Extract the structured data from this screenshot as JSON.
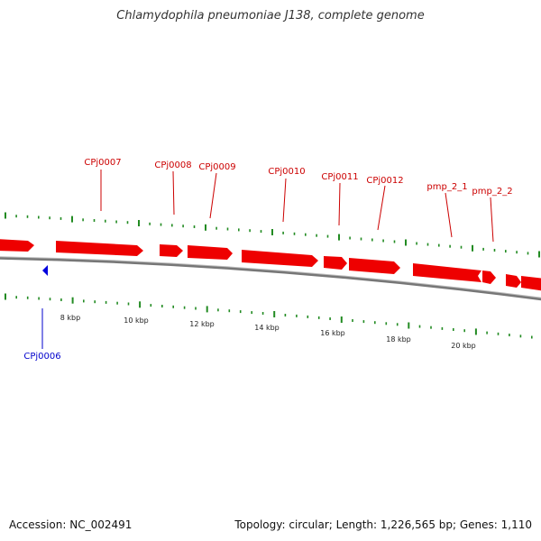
{
  "title": "Chlamydophila pneumoniae J138, complete genome",
  "footer": {
    "accession": "Accession: NC_002491",
    "summary": "Topology: circular; Length: 1,226,565 bp; Genes: 1,110"
  },
  "colors": {
    "forward_gene": "#ee0000",
    "reverse_gene": "#0000dd",
    "forward_label": "#cc0000",
    "reverse_label": "#0000cc",
    "tick": "#228b22",
    "backbone": "#777777"
  },
  "scale_labels": [
    {
      "kbp": 8,
      "label": "8 kbp"
    },
    {
      "kbp": 10,
      "label": "10 kbp"
    },
    {
      "kbp": 12,
      "label": "12 kbp"
    },
    {
      "kbp": 14,
      "label": "14 kbp"
    },
    {
      "kbp": 16,
      "label": "16 kbp"
    },
    {
      "kbp": 18,
      "label": "18 kbp"
    },
    {
      "kbp": 20,
      "label": "20 kbp"
    }
  ],
  "forward_labels": [
    {
      "name": "CPj0007"
    },
    {
      "name": "CPj0008"
    },
    {
      "name": "CPj0009"
    },
    {
      "name": "CPj0010"
    },
    {
      "name": "CPj0011"
    },
    {
      "name": "CPj0012"
    },
    {
      "name": "pmp_2_1"
    },
    {
      "name": "pmp_2_2"
    }
  ],
  "reverse_labels": [
    {
      "name": "CPj0006"
    }
  ]
}
